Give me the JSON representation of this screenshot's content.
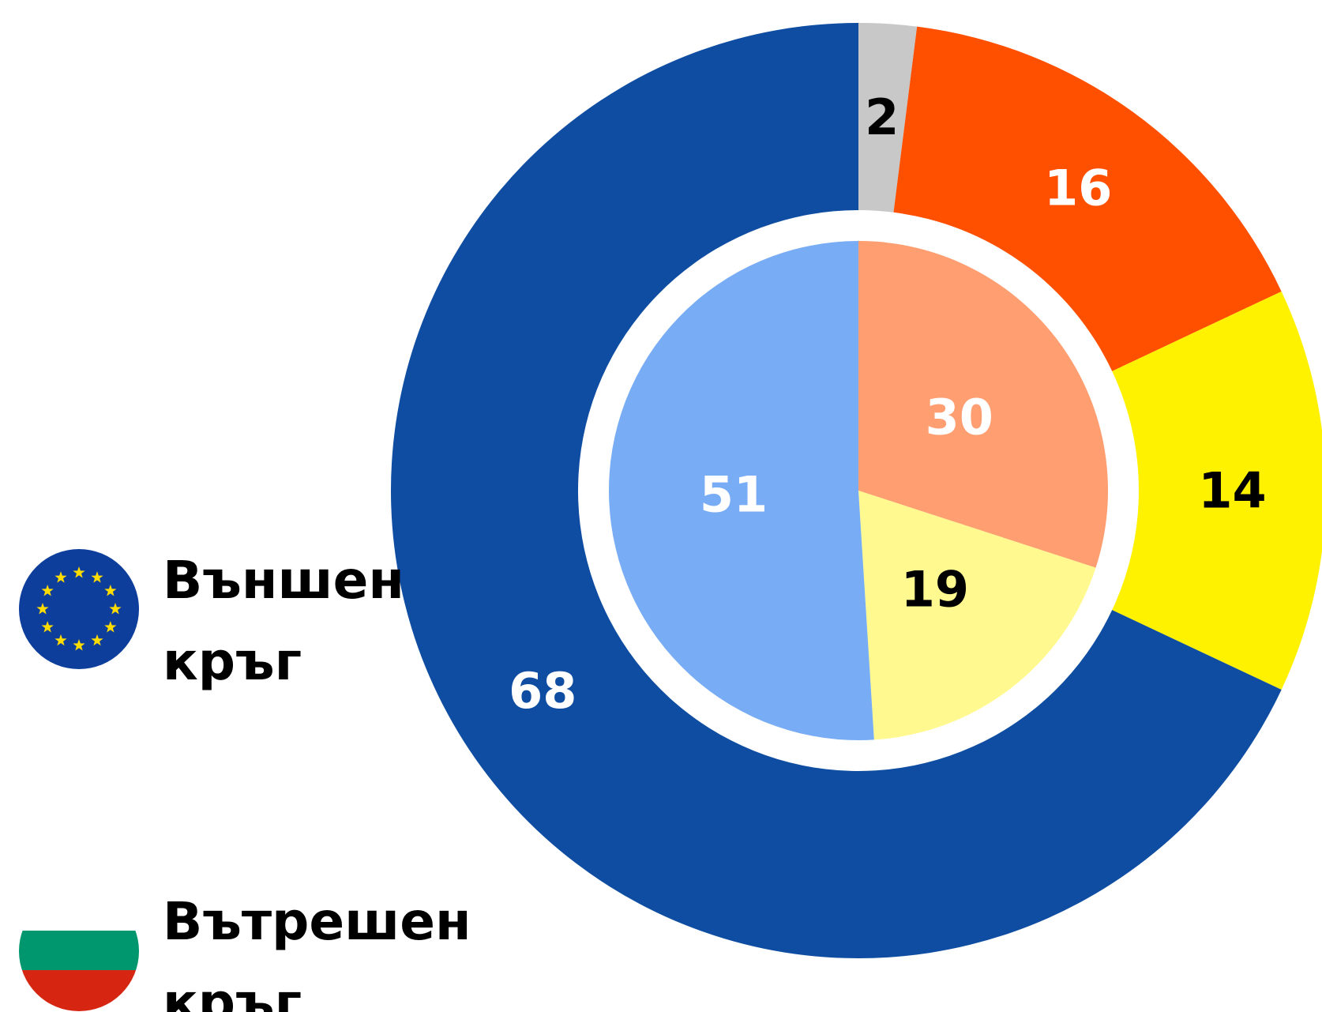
{
  "chart_data": {
    "type": "donut",
    "series": [
      {
        "name": "Външен кръг",
        "values": [
          2,
          16,
          14,
          68
        ],
        "colors": [
          "#c8c8c8",
          "#ff5000",
          "#fff200",
          "#0e4da1"
        ],
        "label_colors": [
          "#000000",
          "#ffffff",
          "#000000",
          "#ffffff"
        ]
      },
      {
        "name": "Вътрешен кръг",
        "values": [
          30,
          19,
          51
        ],
        "colors": [
          "#ff9e70",
          "#fff98f",
          "#78adf5"
        ],
        "label_colors": [
          "#ffffff",
          "#000000",
          "#ffffff"
        ]
      }
    ]
  }
}
